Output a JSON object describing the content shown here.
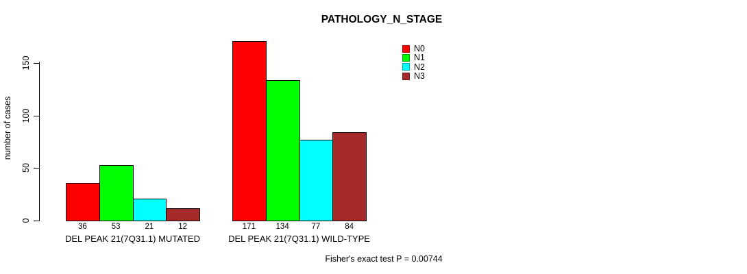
{
  "chart_data": {
    "type": "bar",
    "title": "PATHOLOGY_N_STAGE",
    "ylabel": "number of cases",
    "xlabel": "",
    "categories": [
      "DEL PEAK 21(7Q31.1) MUTATED",
      "DEL PEAK 21(7Q31.1) WILD-TYPE"
    ],
    "series": [
      {
        "name": "N0",
        "color": "#ff0000",
        "values": [
          36,
          171
        ]
      },
      {
        "name": "N1",
        "color": "#00ff00",
        "values": [
          53,
          134
        ]
      },
      {
        "name": "N2",
        "color": "#00ffff",
        "values": [
          21,
          77
        ]
      },
      {
        "name": "N3",
        "color": "#a52a2a",
        "values": [
          12,
          84
        ]
      }
    ],
    "yticks": [
      0,
      50,
      100,
      150
    ],
    "ylim": [
      0,
      175
    ],
    "grid": false,
    "bar_value_labels_shown": true,
    "legend_position": "top-right",
    "axis_color": "#000000",
    "bar_border_color": "#000000",
    "annotation": "Fisher's exact test P = 0.00744"
  }
}
